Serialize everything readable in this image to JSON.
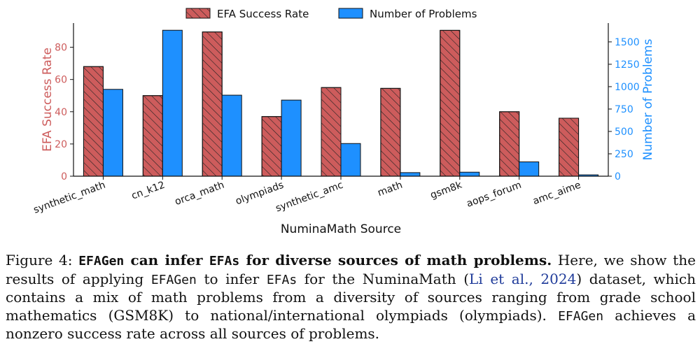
{
  "chart_data": {
    "type": "bar",
    "title": "",
    "xlabel": "NuminaMath Source",
    "categories": [
      "synthetic_math",
      "cn_k12",
      "orca_math",
      "olympiads",
      "synthetic_amc",
      "math",
      "gsm8k",
      "aops_forum",
      "amc_aime"
    ],
    "series": [
      {
        "name": "EFA Success Rate",
        "axis": "left",
        "color": "#cd5c5c",
        "hatch": true,
        "values": [
          68,
          50,
          89.5,
          37,
          55,
          54.5,
          90.5,
          40,
          36
        ]
      },
      {
        "name": "Number of Problems",
        "axis": "right",
        "color": "#1e90ff",
        "hatch": false,
        "values": [
          970,
          1630,
          905,
          850,
          365,
          40,
          45,
          160,
          15
        ]
      }
    ],
    "left_axis": {
      "label": "EFA Success Rate",
      "ylim": [
        0,
        95
      ],
      "ticks": [
        0,
        20,
        40,
        60,
        80
      ],
      "color": "#cd5c5c"
    },
    "right_axis": {
      "label": "Number of Problems",
      "ylim": [
        0,
        1710
      ],
      "ticks": [
        0,
        250,
        500,
        750,
        1000,
        1250,
        1500
      ],
      "color": "#1e90ff"
    },
    "legend": {
      "placement": "top-center"
    },
    "grid": false
  },
  "caption": {
    "label": "Figure 4:",
    "bold_a": "EFAGen",
    "bold_b": " can infer ",
    "bold_c": "EFAs",
    "bold_d": " for diverse sources of math problems.",
    "t1": " Here, we show the results of applying ",
    "m1": "EFAGen",
    "t2": " to infer ",
    "m2": "EFAs",
    "t3": " for the NuminaMath (",
    "cite": "Li et al., 2024",
    "t4": ") dataset, which contains a mix of math problems from a diversity of sources ranging from grade school mathematics (GSM8K) to national/international olympiads (olympiads). ",
    "m3": "EFAGen",
    "t5": " achieves a nonzero success rate across all sources of problems."
  }
}
